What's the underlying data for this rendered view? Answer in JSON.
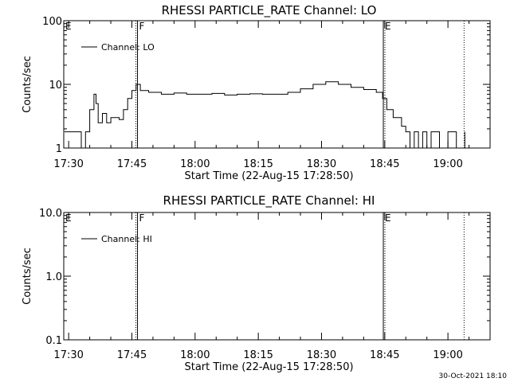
{
  "chart_data": [
    {
      "type": "line",
      "title": "RHESSI PARTICLE_RATE Channel: LO",
      "xlabel": "Start Time (22-Aug-15 17:28:50)",
      "ylabel": "Counts/sec",
      "yscale": "log",
      "ylim": [
        1,
        100
      ],
      "yticks": [
        "1",
        "10",
        "100"
      ],
      "xlim": [
        "17:28:50",
        "19:10:00"
      ],
      "xticks": [
        "17:30",
        "17:45",
        "18:00",
        "18:15",
        "18:30",
        "18:45",
        "19:00"
      ],
      "legend": {
        "placement": "top-left",
        "entries": [
          "Channel: LO"
        ]
      },
      "markers": [
        {
          "label": "E",
          "time": "17:28:50",
          "style": "none"
        },
        {
          "label": "F",
          "time": "17:46:20",
          "style": "dotted-solid"
        },
        {
          "label": "E",
          "time": "18:44:40",
          "style": "solid-dotted"
        },
        {
          "label": "",
          "time": "19:03:50",
          "style": "dotted"
        }
      ],
      "series": [
        {
          "name": "Channel: LO",
          "x": [
            "17:29:00",
            "17:30:00",
            "17:31:00",
            "17:32:00",
            "17:33:00",
            "17:34:00",
            "17:35:00",
            "17:36:00",
            "17:36:30",
            "17:37:00",
            "17:38:00",
            "17:39:00",
            "17:40:00",
            "17:41:00",
            "17:42:00",
            "17:43:00",
            "17:44:00",
            "17:45:00",
            "17:46:00",
            "17:47:00",
            "17:49:00",
            "17:52:00",
            "17:55:00",
            "17:58:00",
            "18:01:00",
            "18:04:00",
            "18:07:00",
            "18:10:00",
            "18:13:00",
            "18:16:00",
            "18:19:00",
            "18:22:00",
            "18:25:00",
            "18:28:00",
            "18:31:00",
            "18:34:00",
            "18:37:00",
            "18:40:00",
            "18:43:00",
            "18:44:30",
            "18:45:30",
            "18:47:00",
            "18:49:00",
            "18:50:00",
            "18:51:00",
            "18:52:00",
            "18:53:00",
            "18:54:00",
            "18:55:00",
            "18:56:00",
            "18:58:00",
            "19:00:00",
            "19:02:00",
            "19:04:00"
          ],
          "y": [
            1.8,
            1.8,
            1.8,
            1.8,
            1,
            1.8,
            4,
            7,
            5,
            2.5,
            3.5,
            2.5,
            3,
            3,
            2.8,
            4,
            6,
            8,
            10,
            8,
            7.5,
            7,
            7.3,
            7,
            7,
            7.2,
            6.8,
            7,
            7.1,
            7,
            7,
            7.5,
            8.5,
            10,
            11,
            10,
            9,
            8.3,
            7.5,
            6,
            4,
            3,
            2.2,
            1.8,
            1,
            1.8,
            1,
            1.8,
            1,
            1.8,
            1,
            1.8,
            1,
            1.8
          ]
        }
      ]
    },
    {
      "type": "line",
      "title": "RHESSI PARTICLE_RATE Channel: HI",
      "xlabel": "Start Time (22-Aug-15 17:28:50)",
      "ylabel": "Counts/sec",
      "yscale": "log",
      "ylim": [
        0.1,
        10
      ],
      "yticks": [
        "0.1",
        "1.0",
        "10.0"
      ],
      "xlim": [
        "17:28:50",
        "19:10:00"
      ],
      "xticks": [
        "17:30",
        "17:45",
        "18:00",
        "18:15",
        "18:30",
        "18:45",
        "19:00"
      ],
      "legend": {
        "placement": "top-left",
        "entries": [
          "Channel: HI"
        ]
      },
      "markers": [
        {
          "label": "E",
          "time": "17:28:50",
          "style": "none"
        },
        {
          "label": "F",
          "time": "17:46:20",
          "style": "dotted-solid"
        },
        {
          "label": "E",
          "time": "18:44:40",
          "style": "solid-dotted"
        },
        {
          "label": "",
          "time": "19:03:50",
          "style": "dotted"
        }
      ],
      "series": [
        {
          "name": "Channel: HI",
          "x": [],
          "y": []
        }
      ]
    }
  ],
  "footer": {
    "timestamp": "30-Oct-2021 18:10"
  }
}
